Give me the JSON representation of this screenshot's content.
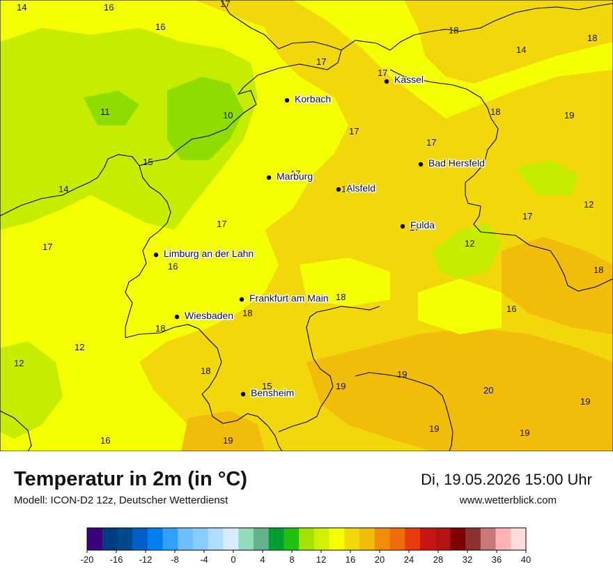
{
  "header": {
    "title": "Temperatur in 2m (in °C)",
    "model": "Modell: ICON-D2 12z, Deutscher Wetterdienst",
    "datetime": "Di, 19.05.2026 15:00 Uhr",
    "website": "www.wetterblick.com"
  },
  "colors": {
    "yellow": "#f4ff00",
    "dark_yellow": "#f2d80a",
    "light_green": "#c6ec00",
    "green": "#8fdc00",
    "border": "#000000"
  },
  "cities": [
    {
      "name": "Kassel"
    },
    {
      "name": "Korbach"
    },
    {
      "name": "Bad Hersfeld"
    },
    {
      "name": "Marburg"
    },
    {
      "name": "Alsfeld"
    },
    {
      "name": "Fulda"
    },
    {
      "name": "Limburg an der Lahn"
    },
    {
      "name": "Frankfurt am Main"
    },
    {
      "name": "Wiesbaden"
    },
    {
      "name": "Bensheim"
    }
  ],
  "temperature_values": [
    "14",
    "16",
    "17",
    "16",
    "18",
    "14",
    "18",
    "17",
    "17",
    "11",
    "10",
    "18",
    "19",
    "17",
    "17",
    "15",
    "17",
    "14",
    "17",
    "12",
    "17",
    "17",
    "17",
    "12",
    "17",
    "16",
    "18",
    "18",
    "16",
    "18",
    "18",
    "12",
    "12",
    "18",
    "15",
    "19",
    "19",
    "20",
    "19",
    "16",
    "19",
    "19",
    "19"
  ],
  "legend": {
    "colors": [
      "#3a0080",
      "#003c80",
      "#004a8c",
      "#0060c8",
      "#0080f0",
      "#30a0ff",
      "#70beff",
      "#88ccff",
      "#b0dcff",
      "#d8ecff",
      "#90dcbc",
      "#66b08a",
      "#00a030",
      "#20c010",
      "#a8e000",
      "#d0f000",
      "#f4ff00",
      "#f2d80a",
      "#f2bc0a",
      "#f28c0a",
      "#f06c0a",
      "#e83a0a",
      "#c81414",
      "#b41414",
      "#800000",
      "#8c3030",
      "#c87878",
      "#ffb4b4",
      "#ffdcdc"
    ],
    "ticks": [
      "-20",
      "-16",
      "-12",
      "-8",
      "-4",
      "0",
      "4",
      "8",
      "12",
      "16",
      "20",
      "24",
      "28",
      "32",
      "36",
      "40"
    ]
  }
}
